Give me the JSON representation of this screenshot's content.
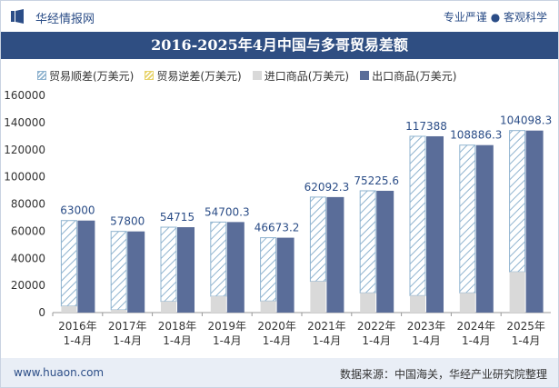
{
  "header": {
    "brand": "华经情报网",
    "slogan": "专业严谨 ● 客观科学"
  },
  "chart_data": {
    "type": "bar",
    "title": "2016-2025年4月中国与多哥贸易差额",
    "categories": [
      "2016年\n1-4月",
      "2017年\n1-4月",
      "2018年\n1-4月",
      "2019年\n1-4月",
      "2020年\n1-4月",
      "2021年\n1-4月",
      "2022年\n1-4月",
      "2023年\n1-4月",
      "2024年\n1-4月",
      "2025年\n1-4月"
    ],
    "series": [
      {
        "name": "贸易顺差(万美元)",
        "values": [
          63000,
          57800,
          54715,
          54700.3,
          46673.2,
          62092.3,
          75225.6,
          117388,
          108886.3,
          104098.3
        ],
        "color": "#8fb3cf",
        "pattern": "hatched"
      },
      {
        "name": "贸易逆差(万美元)",
        "values": [
          0,
          0,
          0,
          0,
          0,
          0,
          0,
          0,
          0,
          0
        ],
        "color": "#e7d36a",
        "pattern": "hatched"
      },
      {
        "name": "进口商品(万美元)",
        "values": [
          4800,
          2000,
          8200,
          12000,
          8500,
          23000,
          14500,
          12500,
          14500,
          30000
        ],
        "color": "#d9d9d9"
      },
      {
        "name": "出口商品(万美元)",
        "values": [
          67800,
          59800,
          62915,
          66700.3,
          55173.2,
          85092.3,
          89725.6,
          129888,
          123386.3,
          134098.3
        ],
        "color": "#5a6d99"
      }
    ],
    "data_labels": [
      "63000",
      "57800",
      "54715",
      "54700.3",
      "46673.2",
      "62092.3",
      "75225.6",
      "117388",
      "108886.3",
      "104098.3"
    ],
    "ylim": [
      0,
      160000
    ],
    "yticks": [
      "0",
      "20000",
      "40000",
      "60000",
      "80000",
      "100000",
      "120000",
      "140000",
      "160000"
    ],
    "grid": false,
    "legend": "top"
  },
  "footer": {
    "website": "www.huaon.com",
    "source": "数据来源：中国海关，华经产业研究院整理"
  }
}
